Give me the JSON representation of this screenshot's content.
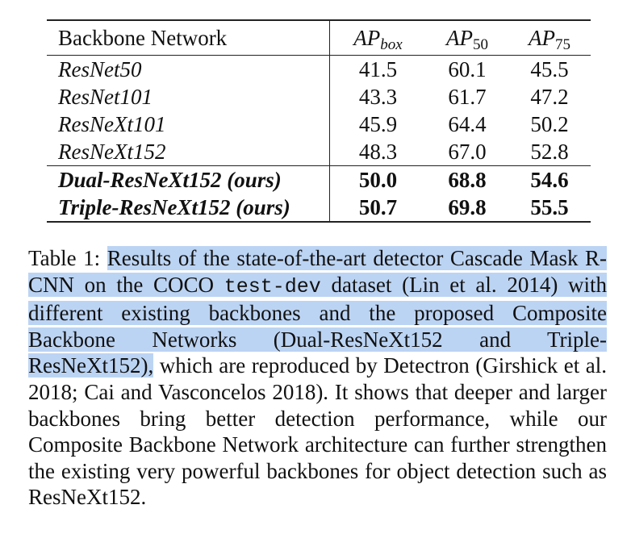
{
  "table": {
    "header": {
      "name": "Backbone Network",
      "cols": [
        {
          "main": "AP",
          "sub": "box"
        },
        {
          "main": "AP",
          "sub": "50"
        },
        {
          "main": "AP",
          "sub": "75"
        }
      ]
    },
    "rows": [
      [
        "ResNet50",
        "41.5",
        "60.1",
        "45.5"
      ],
      [
        "ResNet101",
        "43.3",
        "61.7",
        "47.2"
      ],
      [
        "ResNeXt101",
        "45.9",
        "64.4",
        "50.2"
      ],
      [
        "ResNeXt152",
        "48.3",
        "67.0",
        "52.8"
      ],
      [
        "Dual-ResNeXt152 (ours)",
        "50.0",
        "68.8",
        "54.6"
      ],
      [
        "Triple-ResNeXt152 (ours)",
        "50.7",
        "69.8",
        "55.5"
      ]
    ]
  },
  "caption": {
    "label": "Table 1:",
    "highlight_before": "Results of the state-of-the-art detector Cascade Mask R-CNN on the COCO",
    "code": "test-dev",
    "highlight_after": "dataset (Lin et al. 2014) with different existing backbones and the proposed Composite Backbone Networks (Dual-ResNeXt152 and Triple-ResNeXt152),",
    "rest": "which are reproduced by Detectron (Girshick et al. 2018; Cai and Vasconcelos 2018). It shows that deeper and larger backbones bring better detection performance, while our Composite Backbone Network architecture can further strengthen the existing very powerful backbones for object detection such as ResNeXt152."
  }
}
